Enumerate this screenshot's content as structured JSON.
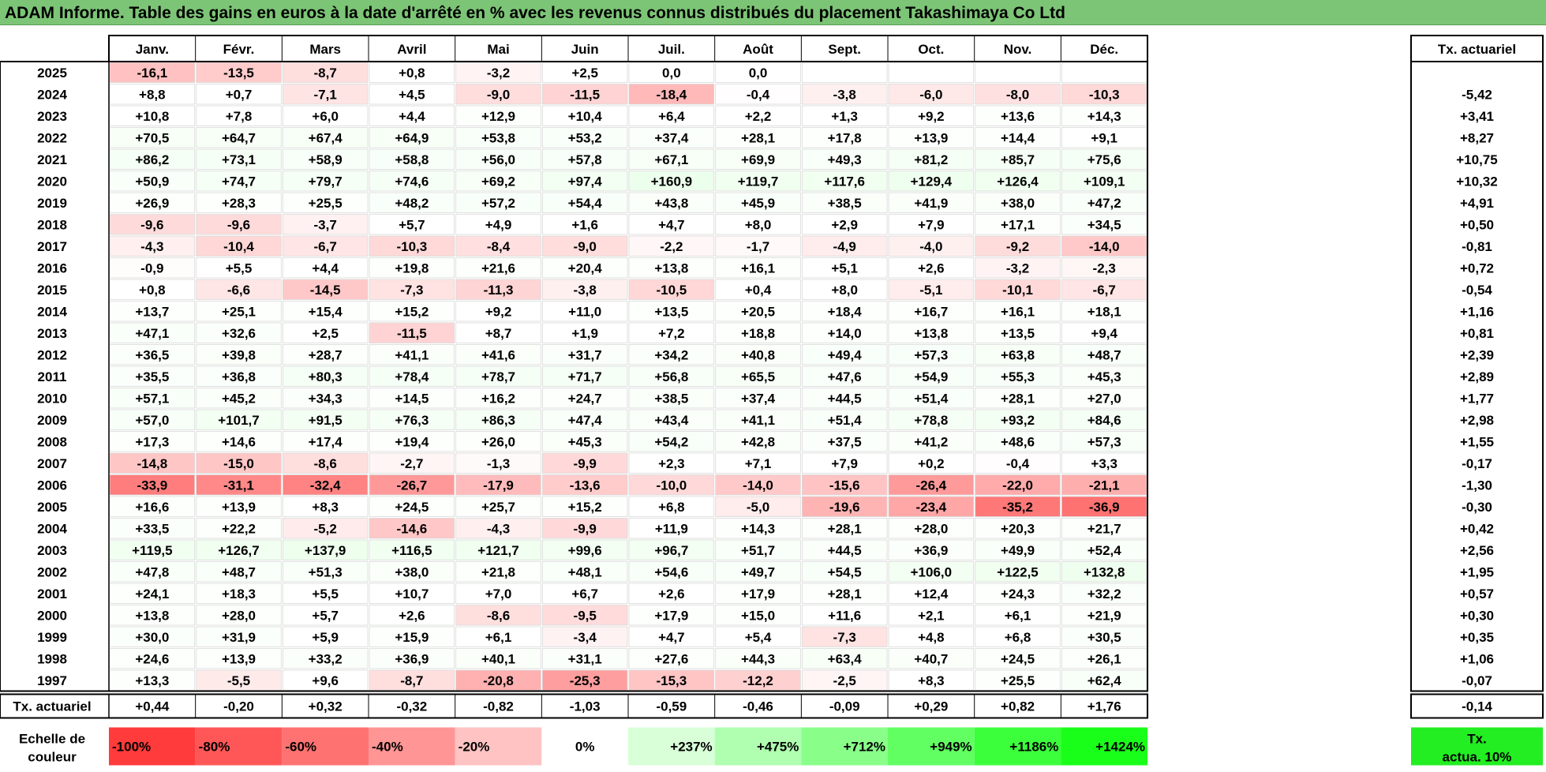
{
  "title": "ADAM Informe. Table des gains en euros à la date d'arrêté en % avec les revenus connus distribués du placement Takashimaya Co Ltd",
  "chart_data": {
    "type": "heatmap",
    "columns": [
      "Janv.",
      "Févr.",
      "Mars",
      "Avril",
      "Mai",
      "Juin",
      "Juil.",
      "Août",
      "Sept.",
      "Oct.",
      "Nov.",
      "Déc."
    ],
    "rate_header": "Tx. actuariel",
    "rows": [
      {
        "year": "2025",
        "values": [
          "-16,1",
          "-13,5",
          "-8,7",
          "+0,8",
          "-3,2",
          "+2,5",
          "0,0",
          "0,0",
          "",
          "",
          "",
          ""
        ],
        "rate": ""
      },
      {
        "year": "2024",
        "values": [
          "+8,8",
          "+0,7",
          "-7,1",
          "+4,5",
          "-9,0",
          "-11,5",
          "-18,4",
          "-0,4",
          "-3,8",
          "-6,0",
          "-8,0",
          "-10,3"
        ],
        "rate": "-5,42"
      },
      {
        "year": "2023",
        "values": [
          "+10,8",
          "+7,8",
          "+6,0",
          "+4,4",
          "+12,9",
          "+10,4",
          "+6,4",
          "+2,2",
          "+1,3",
          "+9,2",
          "+13,6",
          "+14,3"
        ],
        "rate": "+3,41"
      },
      {
        "year": "2022",
        "values": [
          "+70,5",
          "+64,7",
          "+67,4",
          "+64,9",
          "+53,8",
          "+53,2",
          "+37,4",
          "+28,1",
          "+17,8",
          "+13,9",
          "+14,4",
          "+9,1"
        ],
        "rate": "+8,27"
      },
      {
        "year": "2021",
        "values": [
          "+86,2",
          "+73,1",
          "+58,9",
          "+58,8",
          "+56,0",
          "+57,8",
          "+67,1",
          "+69,9",
          "+49,3",
          "+81,2",
          "+85,7",
          "+75,6"
        ],
        "rate": "+10,75"
      },
      {
        "year": "2020",
        "values": [
          "+50,9",
          "+74,7",
          "+79,7",
          "+74,6",
          "+69,2",
          "+97,4",
          "+160,9",
          "+119,7",
          "+117,6",
          "+129,4",
          "+126,4",
          "+109,1"
        ],
        "rate": "+10,32"
      },
      {
        "year": "2019",
        "values": [
          "+26,9",
          "+28,3",
          "+25,5",
          "+48,2",
          "+57,2",
          "+54,4",
          "+43,8",
          "+45,9",
          "+38,5",
          "+41,9",
          "+38,0",
          "+47,2"
        ],
        "rate": "+4,91"
      },
      {
        "year": "2018",
        "values": [
          "-9,6",
          "-9,6",
          "-3,7",
          "+5,7",
          "+4,9",
          "+1,6",
          "+4,7",
          "+8,0",
          "+2,9",
          "+7,9",
          "+17,1",
          "+34,5"
        ],
        "rate": "+0,50"
      },
      {
        "year": "2017",
        "values": [
          "-4,3",
          "-10,4",
          "-6,7",
          "-10,3",
          "-8,4",
          "-9,0",
          "-2,2",
          "-1,7",
          "-4,9",
          "-4,0",
          "-9,2",
          "-14,0"
        ],
        "rate": "-0,81"
      },
      {
        "year": "2016",
        "values": [
          "-0,9",
          "+5,5",
          "+4,4",
          "+19,8",
          "+21,6",
          "+20,4",
          "+13,8",
          "+16,1",
          "+5,1",
          "+2,6",
          "-3,2",
          "-2,3"
        ],
        "rate": "+0,72"
      },
      {
        "year": "2015",
        "values": [
          "+0,8",
          "-6,6",
          "-14,5",
          "-7,3",
          "-11,3",
          "-3,8",
          "-10,5",
          "+0,4",
          "+8,0",
          "-5,1",
          "-10,1",
          "-6,7"
        ],
        "rate": "-0,54"
      },
      {
        "year": "2014",
        "values": [
          "+13,7",
          "+25,1",
          "+15,4",
          "+15,2",
          "+9,2",
          "+11,0",
          "+13,5",
          "+20,5",
          "+18,4",
          "+16,7",
          "+16,1",
          "+18,1"
        ],
        "rate": "+1,16"
      },
      {
        "year": "2013",
        "values": [
          "+47,1",
          "+32,6",
          "+2,5",
          "-11,5",
          "+8,7",
          "+1,9",
          "+7,2",
          "+18,8",
          "+14,0",
          "+13,8",
          "+13,5",
          "+9,4"
        ],
        "rate": "+0,81"
      },
      {
        "year": "2012",
        "values": [
          "+36,5",
          "+39,8",
          "+28,7",
          "+41,1",
          "+41,6",
          "+31,7",
          "+34,2",
          "+40,8",
          "+49,4",
          "+57,3",
          "+63,8",
          "+48,7"
        ],
        "rate": "+2,39"
      },
      {
        "year": "2011",
        "values": [
          "+35,5",
          "+36,8",
          "+80,3",
          "+78,4",
          "+78,7",
          "+71,7",
          "+56,8",
          "+65,5",
          "+47,6",
          "+54,9",
          "+55,3",
          "+45,3"
        ],
        "rate": "+2,89"
      },
      {
        "year": "2010",
        "values": [
          "+57,1",
          "+45,2",
          "+34,3",
          "+14,5",
          "+16,2",
          "+24,7",
          "+38,5",
          "+37,4",
          "+44,5",
          "+51,4",
          "+28,1",
          "+27,0"
        ],
        "rate": "+1,77"
      },
      {
        "year": "2009",
        "values": [
          "+57,0",
          "+101,7",
          "+91,5",
          "+76,3",
          "+86,3",
          "+47,4",
          "+43,4",
          "+41,1",
          "+51,4",
          "+78,8",
          "+93,2",
          "+84,6"
        ],
        "rate": "+2,98"
      },
      {
        "year": "2008",
        "values": [
          "+17,3",
          "+14,6",
          "+17,4",
          "+19,4",
          "+26,0",
          "+45,3",
          "+54,2",
          "+42,8",
          "+37,5",
          "+41,2",
          "+48,6",
          "+57,3"
        ],
        "rate": "+1,55"
      },
      {
        "year": "2007",
        "values": [
          "-14,8",
          "-15,0",
          "-8,6",
          "-2,7",
          "-1,3",
          "-9,9",
          "+2,3",
          "+7,1",
          "+7,9",
          "+0,2",
          "-0,4",
          "+3,3"
        ],
        "rate": "-0,17"
      },
      {
        "year": "2006",
        "values": [
          "-33,9",
          "-31,1",
          "-32,4",
          "-26,7",
          "-17,9",
          "-13,6",
          "-10,0",
          "-14,0",
          "-15,6",
          "-26,4",
          "-22,0",
          "-21,1"
        ],
        "rate": "-1,30"
      },
      {
        "year": "2005",
        "values": [
          "+16,6",
          "+13,9",
          "+8,3",
          "+24,5",
          "+25,7",
          "+15,2",
          "+6,8",
          "-5,0",
          "-19,6",
          "-23,4",
          "-35,2",
          "-36,9"
        ],
        "rate": "-0,30"
      },
      {
        "year": "2004",
        "values": [
          "+33,5",
          "+22,2",
          "-5,2",
          "-14,6",
          "-4,3",
          "-9,9",
          "+11,9",
          "+14,3",
          "+28,1",
          "+28,0",
          "+20,3",
          "+21,7"
        ],
        "rate": "+0,42"
      },
      {
        "year": "2003",
        "values": [
          "+119,5",
          "+126,7",
          "+137,9",
          "+116,5",
          "+121,7",
          "+99,6",
          "+96,7",
          "+51,7",
          "+44,5",
          "+36,9",
          "+49,9",
          "+52,4"
        ],
        "rate": "+2,56"
      },
      {
        "year": "2002",
        "values": [
          "+47,8",
          "+48,7",
          "+51,3",
          "+38,0",
          "+21,8",
          "+48,1",
          "+54,6",
          "+49,7",
          "+54,5",
          "+106,0",
          "+122,5",
          "+132,8"
        ],
        "rate": "+1,95"
      },
      {
        "year": "2001",
        "values": [
          "+24,1",
          "+18,3",
          "+5,5",
          "+10,7",
          "+7,0",
          "+6,7",
          "+2,6",
          "+17,9",
          "+28,1",
          "+12,4",
          "+24,3",
          "+32,2"
        ],
        "rate": "+0,57"
      },
      {
        "year": "2000",
        "values": [
          "+13,8",
          "+28,0",
          "+5,7",
          "+2,6",
          "-8,6",
          "-9,5",
          "+17,9",
          "+15,0",
          "+11,6",
          "+2,1",
          "+6,1",
          "+21,9"
        ],
        "rate": "+0,30"
      },
      {
        "year": "1999",
        "values": [
          "+30,0",
          "+31,9",
          "+5,9",
          "+15,9",
          "+6,1",
          "-3,4",
          "+4,7",
          "+5,4",
          "-7,3",
          "+4,8",
          "+6,8",
          "+30,5"
        ],
        "rate": "+0,35"
      },
      {
        "year": "1998",
        "values": [
          "+24,6",
          "+13,9",
          "+33,2",
          "+36,9",
          "+40,1",
          "+31,1",
          "+27,6",
          "+44,3",
          "+63,4",
          "+40,7",
          "+24,5",
          "+26,1"
        ],
        "rate": "+1,06"
      },
      {
        "year": "1997",
        "values": [
          "+13,3",
          "-5,5",
          "+9,6",
          "-8,7",
          "-20,8",
          "-25,3",
          "-15,3",
          "-12,2",
          "-2,5",
          "+8,3",
          "+25,5",
          "+62,4"
        ],
        "rate": "-0,07"
      }
    ],
    "summary_row": {
      "label": "Tx. actuariel",
      "values": [
        "+0,44",
        "-0,20",
        "+0,32",
        "-0,32",
        "-0,82",
        "-1,03",
        "-0,59",
        "-0,46",
        "-0,09",
        "+0,29",
        "+0,82",
        "+1,76"
      ],
      "rate": "-0,14"
    },
    "scale": {
      "label_line1": "Echelle de",
      "label_line2": "couleur",
      "stops": [
        {
          "label": "-100%",
          "color": "#ff3b3b",
          "align": "left"
        },
        {
          "label": "-80%",
          "color": "#ff5757",
          "align": "left"
        },
        {
          "label": "-60%",
          "color": "#ff7272",
          "align": "left"
        },
        {
          "label": "-40%",
          "color": "#ff9595",
          "align": "left"
        },
        {
          "label": "-20%",
          "color": "#ffc3c3",
          "align": "left"
        },
        {
          "label": "0%",
          "color": "#ffffff",
          "align": "center"
        },
        {
          "label": "+237%",
          "color": "#d8ffd8",
          "align": "right"
        },
        {
          "label": "+475%",
          "color": "#b0ffb0",
          "align": "right"
        },
        {
          "label": "+712%",
          "color": "#89ff89",
          "align": "right"
        },
        {
          "label": "+949%",
          "color": "#62ff62",
          "align": "right"
        },
        {
          "label": "+1186%",
          "color": "#3cff3c",
          "align": "right"
        },
        {
          "label": "+1424%",
          "color": "#1aff1a",
          "align": "right"
        }
      ],
      "rate_label_line1": "Tx.",
      "rate_label_line2": "actua. 10%",
      "rate_color": "#22ee22"
    },
    "colors": {
      "negative": "#ff3b3b",
      "positive_tint": "#e8fbe8",
      "title_bg": "#7cc576"
    }
  }
}
